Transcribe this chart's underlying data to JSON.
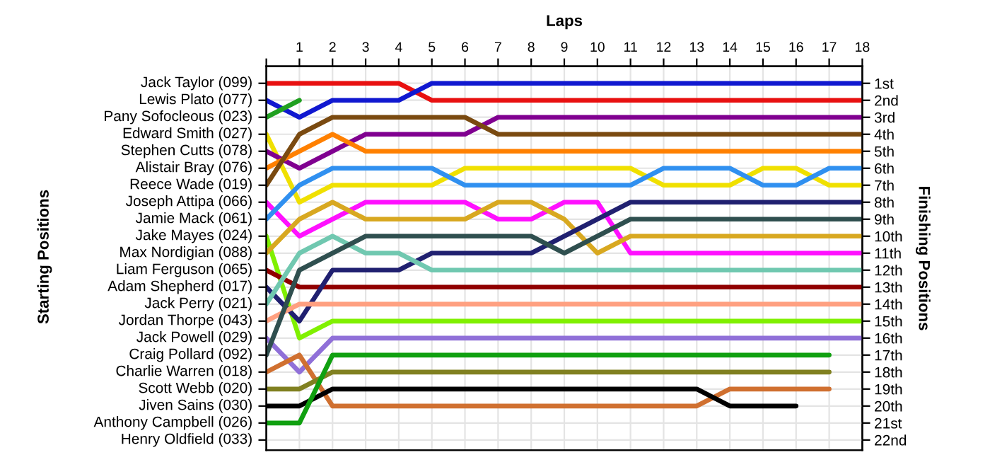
{
  "chart_data": {
    "type": "line",
    "xlabel": "Laps",
    "y2label": "Finishing Positions",
    "x": [
      0,
      1,
      2,
      3,
      4,
      5,
      6,
      7,
      8,
      9,
      10,
      11,
      12,
      13,
      14,
      15,
      16,
      17,
      18
    ],
    "xlim": [
      0,
      18
    ],
    "xticks": [
      {
        "value": 0,
        "label": null
      },
      1,
      2,
      3,
      4,
      5,
      6,
      7,
      8,
      9,
      10,
      11,
      12,
      13,
      14,
      15,
      16,
      17,
      18
    ],
    "annotations": [
      "Jack Taylor (099)",
      "Lewis Plato (077)",
      "Pany Sofocleous (023)",
      "Edward Smith (027)",
      "Stephen Cutts (078)",
      "Alistair Bray (076)",
      "Reece Wade (019)",
      "Joseph Attipa (066)",
      "Jamie Mack (061)",
      "Jake Mayes (024)",
      "Max Nordigian (088)",
      "Liam Ferguson (065)",
      "Adam Shepherd (017)",
      "Jack Perry (021)",
      "Jordan Thorpe (043)",
      "Jack Powell (029)",
      "Craig Pollard (092)",
      "Charlie Warren (018)",
      "Scott Webb (020)",
      "Jiven Sains (030)",
      "Anthony Campbell (026)",
      "Henry Oldfield (033)",
      "Starting Positions"
    ],
    "y2lim": [
      22.6,
      0
    ],
    "y2ticks": [
      {
        "value": 1,
        "label": "1st"
      },
      {
        "value": 2,
        "label": "2nd"
      },
      {
        "value": 3,
        "label": "3rd"
      },
      {
        "value": 4,
        "label": "4th"
      },
      {
        "value": 5,
        "label": "5th"
      },
      {
        "value": 6,
        "label": "6th"
      },
      {
        "value": 7,
        "label": "7th"
      },
      {
        "value": 8,
        "label": "8th"
      },
      {
        "value": 9,
        "label": "9th"
      },
      {
        "value": 10,
        "label": "10th"
      },
      {
        "value": 11,
        "label": "11th"
      },
      {
        "value": 12,
        "label": "12th"
      },
      {
        "value": 13,
        "label": "13th"
      },
      {
        "value": 14,
        "label": "14th"
      },
      {
        "value": 15,
        "label": "15th"
      },
      {
        "value": 16,
        "label": "16th"
      },
      {
        "value": 17,
        "label": "17th"
      },
      {
        "value": 18,
        "label": "18th"
      },
      {
        "value": 19,
        "label": "19th"
      },
      {
        "value": 20,
        "label": "20th"
      },
      {
        "value": 21,
        "label": "21st"
      },
      {
        "value": 22,
        "label": "22nd"
      }
    ],
    "grid": true,
    "marker": "none",
    "line_style": "solid",
    "series": [
      {
        "axis": "y2",
        "color": "#e81010",
        "values": [
          1,
          1,
          1,
          1,
          1,
          2,
          2,
          2,
          2,
          2,
          2,
          2,
          2,
          2,
          2,
          2,
          2,
          2,
          2
        ]
      },
      {
        "axis": "y2",
        "color": "#1018d0",
        "values": [
          2,
          3,
          2,
          2,
          2,
          1,
          1,
          1,
          1,
          1,
          1,
          1,
          1,
          1,
          1,
          1,
          1,
          1,
          1
        ]
      },
      {
        "axis": "y2",
        "color": "#20a020",
        "values": [
          3,
          2,
          null,
          null,
          null,
          null,
          null,
          null,
          null,
          null,
          null,
          null,
          null,
          null,
          null,
          null,
          null,
          null,
          null
        ]
      },
      {
        "axis": "y2",
        "color": "#f0e000",
        "values": [
          4,
          8,
          7,
          7,
          7,
          7,
          6,
          6,
          6,
          6,
          6,
          6,
          7,
          7,
          7,
          6,
          6,
          7,
          7
        ]
      },
      {
        "axis": "y2",
        "color": "#800090",
        "values": [
          5,
          6,
          5,
          4,
          4,
          4,
          4,
          3,
          3,
          3,
          3,
          3,
          3,
          3,
          3,
          3,
          3,
          3,
          3
        ]
      },
      {
        "axis": "y2",
        "color": "#ff8000",
        "values": [
          6,
          5,
          4,
          5,
          5,
          5,
          5,
          5,
          5,
          5,
          5,
          5,
          5,
          5,
          5,
          5,
          5,
          5,
          5
        ]
      },
      {
        "axis": "y2",
        "color": "#7a4a10",
        "values": [
          7,
          4,
          3,
          3,
          3,
          3,
          3,
          4,
          4,
          4,
          4,
          4,
          4,
          4,
          4,
          4,
          4,
          4,
          4
        ]
      },
      {
        "axis": "y2",
        "color": "#ff10ff",
        "values": [
          8,
          10,
          9,
          8,
          8,
          8,
          8,
          9,
          9,
          8,
          8,
          11,
          11,
          11,
          11,
          11,
          11,
          11,
          11
        ]
      },
      {
        "axis": "y2",
        "color": "#3090f0",
        "values": [
          9,
          7,
          6,
          6,
          6,
          6,
          7,
          7,
          7,
          7,
          7,
          7,
          6,
          6,
          6,
          7,
          7,
          6,
          6
        ]
      },
      {
        "axis": "y2",
        "color": "#80f000",
        "values": [
          10,
          16,
          15,
          15,
          15,
          15,
          15,
          15,
          15,
          15,
          15,
          15,
          15,
          15,
          15,
          15,
          15,
          15,
          15
        ]
      },
      {
        "axis": "y2",
        "color": "#d8a820",
        "values": [
          11,
          9,
          8,
          9,
          9,
          9,
          9,
          8,
          8,
          9,
          11,
          10,
          10,
          10,
          10,
          10,
          10,
          10,
          10
        ]
      },
      {
        "axis": "y2",
        "color": "#900000",
        "values": [
          12,
          13,
          13,
          13,
          13,
          13,
          13,
          13,
          13,
          13,
          13,
          13,
          13,
          13,
          13,
          13,
          13,
          13,
          13
        ]
      },
      {
        "axis": "y2",
        "color": "#202070",
        "values": [
          13,
          15,
          12,
          12,
          12,
          11,
          11,
          11,
          11,
          10,
          9,
          8,
          8,
          8,
          8,
          8,
          8,
          8,
          8
        ]
      },
      {
        "axis": "y2",
        "color": "#70c8b0",
        "values": [
          14,
          11,
          10,
          11,
          11,
          12,
          12,
          12,
          12,
          12,
          12,
          12,
          12,
          12,
          12,
          12,
          12,
          12,
          12
        ]
      },
      {
        "axis": "y2",
        "color": "#ffa080",
        "values": [
          15,
          14,
          14,
          14,
          14,
          14,
          14,
          14,
          14,
          14,
          14,
          14,
          14,
          14,
          14,
          14,
          14,
          14,
          14
        ]
      },
      {
        "axis": "y2",
        "color": "#9070d8",
        "values": [
          16,
          18,
          16,
          16,
          16,
          16,
          16,
          16,
          16,
          16,
          16,
          16,
          16,
          16,
          16,
          16,
          16,
          16,
          16
        ]
      },
      {
        "axis": "y2",
        "color": "#2f4f4f",
        "values": [
          17,
          12,
          11,
          10,
          10,
          10,
          10,
          10,
          10,
          11,
          10,
          9,
          9,
          9,
          9,
          9,
          9,
          9,
          9
        ]
      },
      {
        "axis": "y2",
        "color": "#d07030",
        "values": [
          18,
          17,
          20,
          20,
          20,
          20,
          20,
          20,
          20,
          20,
          20,
          20,
          20,
          20,
          19,
          19,
          19,
          19,
          null
        ]
      },
      {
        "axis": "y2",
        "color": "#808020",
        "values": [
          19,
          19,
          18,
          18,
          18,
          18,
          18,
          18,
          18,
          18,
          18,
          18,
          18,
          18,
          18,
          18,
          18,
          18,
          null
        ]
      },
      {
        "axis": "y2",
        "color": "#000000",
        "values": [
          20,
          20,
          19,
          19,
          19,
          19,
          19,
          19,
          19,
          19,
          19,
          19,
          19,
          19,
          20,
          20,
          20,
          null,
          null
        ]
      },
      {
        "axis": "y2",
        "color": "#10a010",
        "values": [
          21,
          21,
          17,
          17,
          17,
          17,
          17,
          17,
          17,
          17,
          17,
          17,
          17,
          17,
          17,
          17,
          17,
          17,
          null
        ]
      }
    ]
  }
}
